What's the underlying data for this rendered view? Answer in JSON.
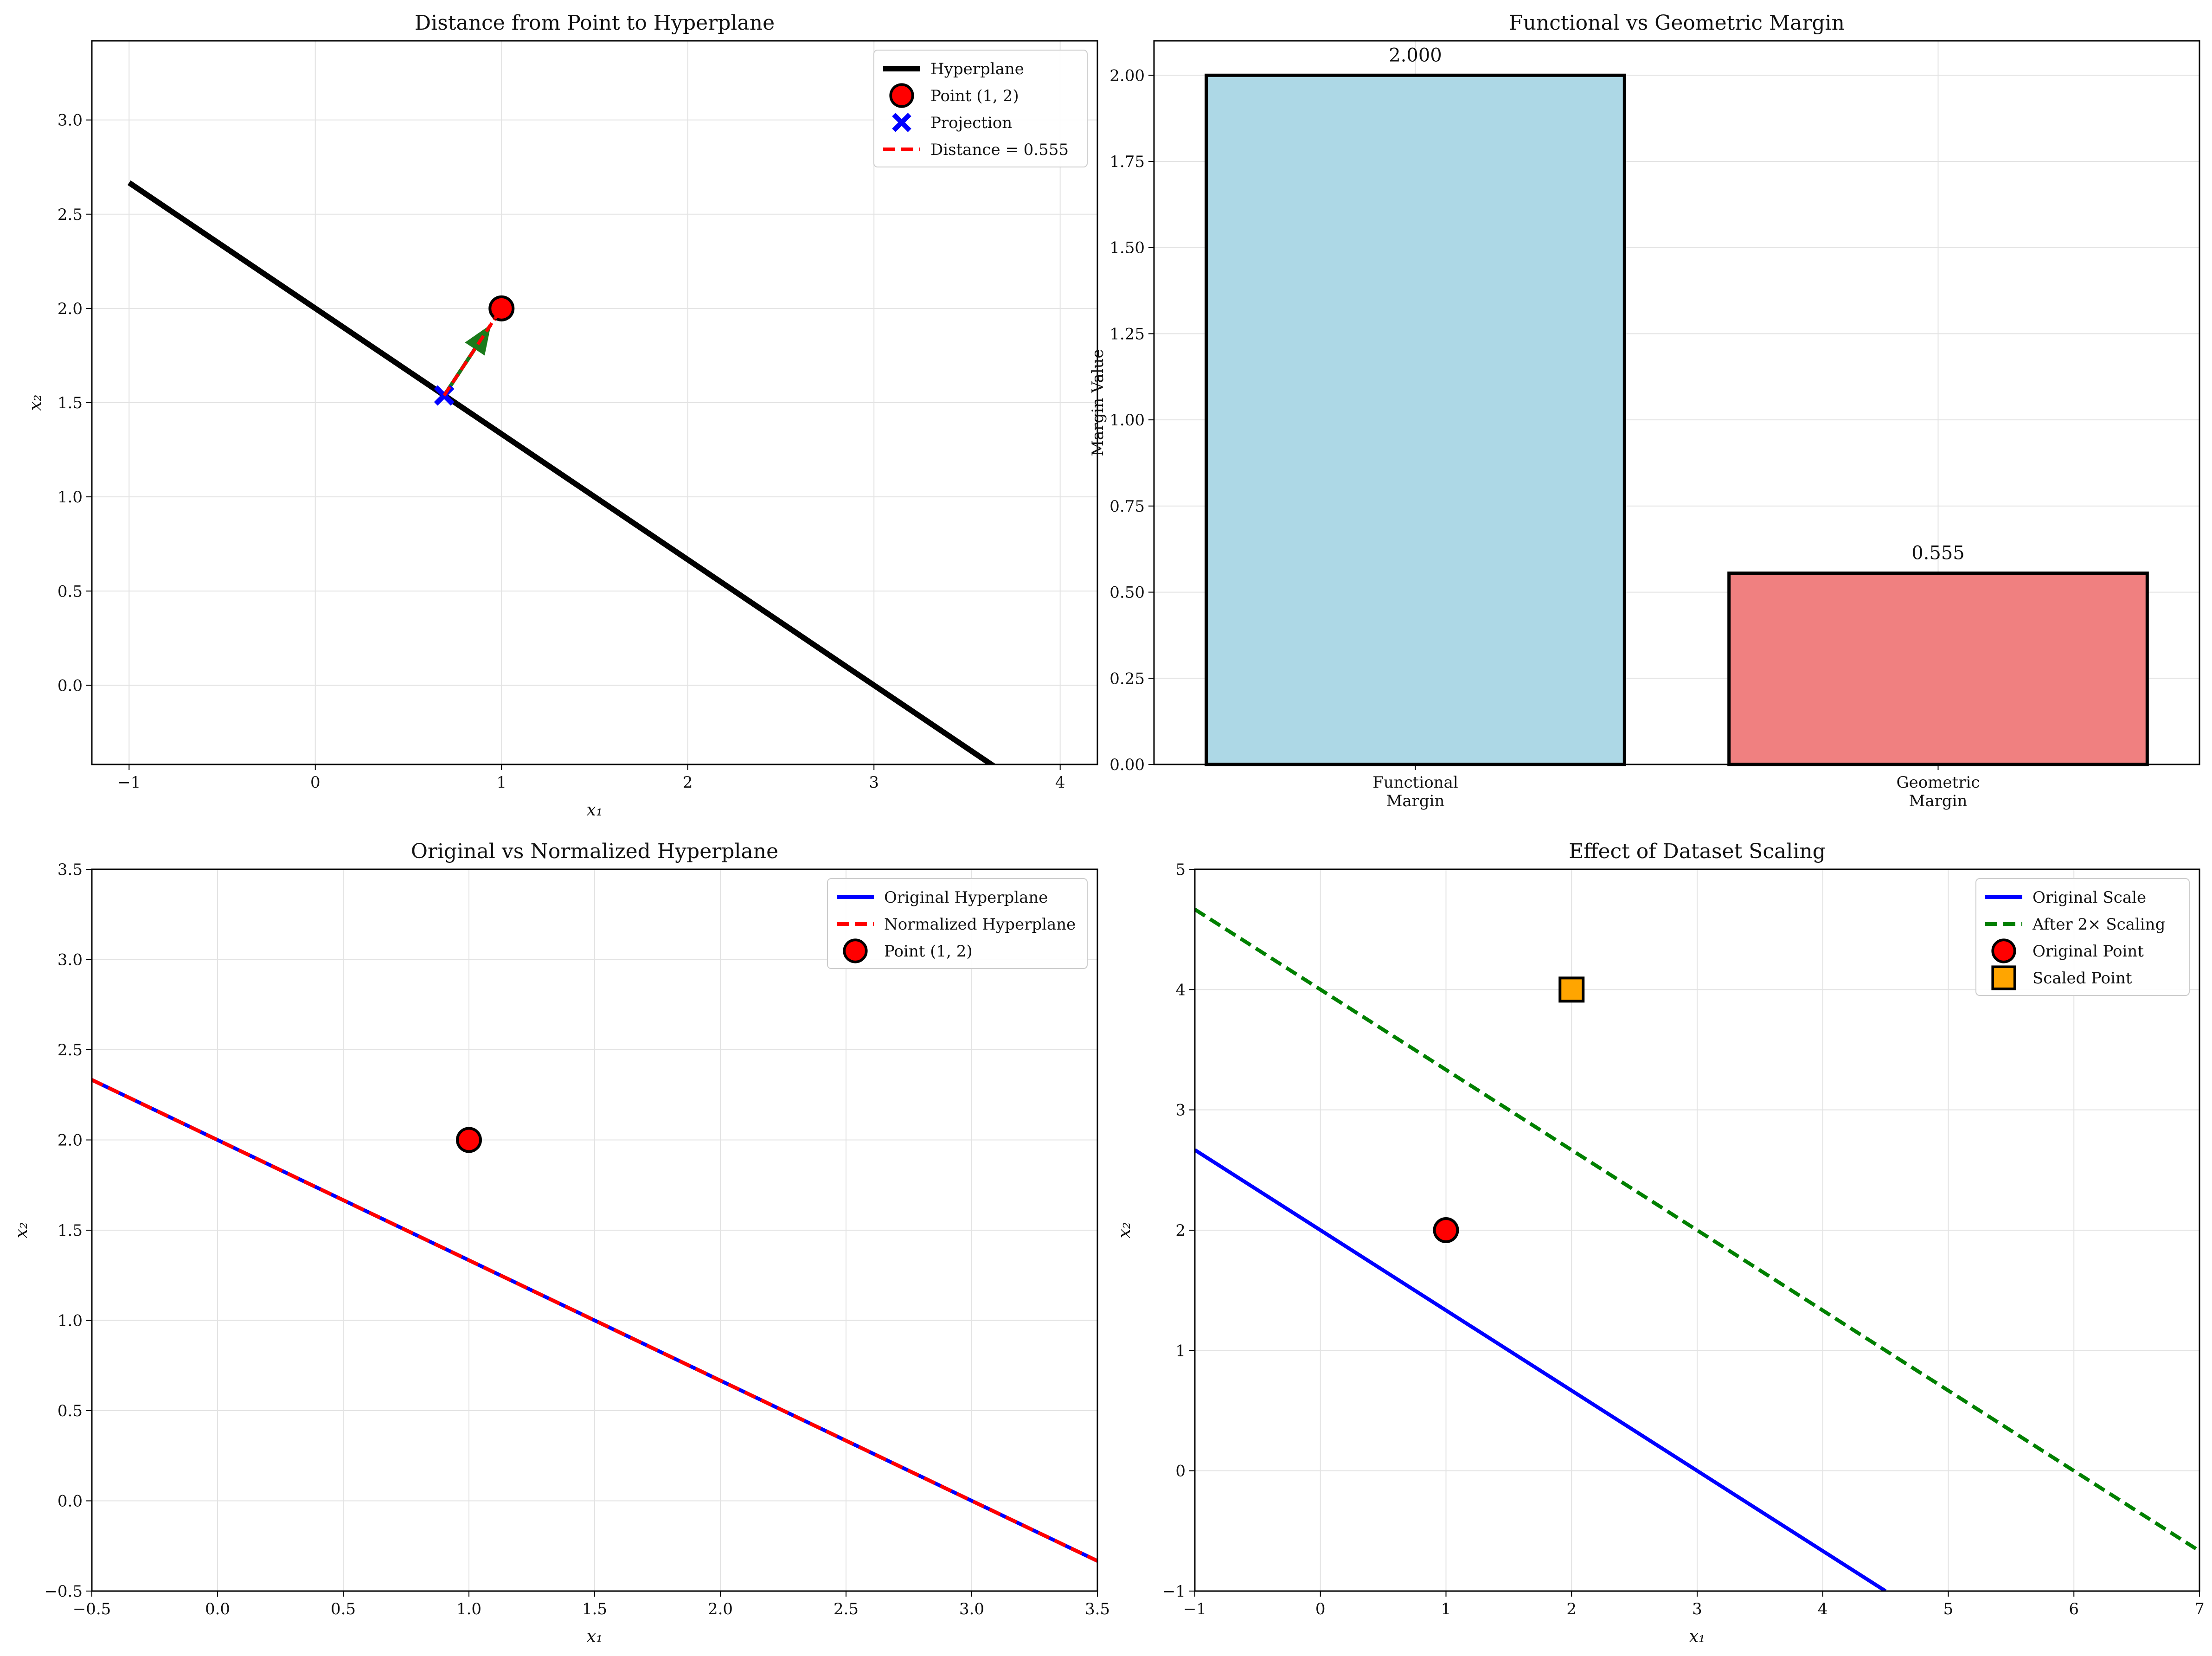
{
  "chart_data": [
    {
      "type": "line",
      "title": "Distance from Point to Hyperplane",
      "xlabel": "x₁",
      "ylabel": "x₂",
      "xlim": [
        -1.2,
        4.2
      ],
      "ylim": [
        -0.42,
        3.42
      ],
      "x_ticks": [
        -1,
        0,
        1,
        2,
        3,
        4
      ],
      "y_ticks": [
        0.0,
        0.5,
        1.0,
        1.5,
        2.0,
        2.5,
        3.0
      ],
      "grid": true,
      "legend_position": "top-right",
      "series": [
        {
          "name": "Hyperplane",
          "kind": "line",
          "color": "#000000",
          "style": "solid",
          "x": [
            -1.0,
            3.65
          ],
          "y": [
            2.667,
            -0.433
          ]
        },
        {
          "name": "Point (1, 2)",
          "kind": "marker",
          "marker": "circle",
          "color": "#ff0000",
          "x": [
            1.0
          ],
          "y": [
            2.0
          ]
        },
        {
          "name": "Projection",
          "kind": "marker",
          "marker": "x",
          "color": "#0000ff",
          "x": [
            0.692
          ],
          "y": [
            1.538
          ]
        },
        {
          "name": "Distance = 0.555",
          "kind": "line",
          "color": "#ff0000",
          "style": "dashed",
          "x": [
            0.692,
            1.0
          ],
          "y": [
            1.538,
            2.0
          ]
        }
      ],
      "arrow": {
        "color": "#1a7a1a",
        "from": [
          0.692,
          1.538
        ],
        "to": [
          0.94,
          1.91
        ]
      }
    },
    {
      "type": "bar",
      "title": "Functional vs Geometric Margin",
      "xlabel": "",
      "ylabel": "Margin Value",
      "categories": [
        [
          "Functional",
          "Margin"
        ],
        [
          "Geometric",
          "Margin"
        ]
      ],
      "values": [
        2.0,
        0.555
      ],
      "value_labels": [
        "2.000",
        "0.555"
      ],
      "colors": [
        "#add8e6",
        "#f08080"
      ],
      "ylim": [
        0,
        2.1
      ],
      "y_ticks": [
        0.0,
        0.25,
        0.5,
        0.75,
        1.0,
        1.25,
        1.5,
        1.75,
        2.0
      ],
      "grid": true
    },
    {
      "type": "line",
      "title": "Original vs Normalized Hyperplane",
      "xlabel": "x₁",
      "ylabel": "x₂",
      "xlim": [
        -0.5,
        3.5
      ],
      "ylim": [
        -0.5,
        3.5
      ],
      "x_ticks": [
        -0.5,
        0.0,
        0.5,
        1.0,
        1.5,
        2.0,
        2.5,
        3.0,
        3.5
      ],
      "y_ticks": [
        -0.5,
        0.0,
        0.5,
        1.0,
        1.5,
        2.0,
        2.5,
        3.0,
        3.5
      ],
      "grid": true,
      "legend_position": "top-right",
      "series": [
        {
          "name": "Original Hyperplane",
          "kind": "line",
          "color": "#0000ff",
          "style": "solid",
          "x": [
            -0.5,
            3.5
          ],
          "y": [
            2.333,
            -0.333
          ]
        },
        {
          "name": "Normalized Hyperplane",
          "kind": "line",
          "color": "#ff0000",
          "style": "dashed",
          "x": [
            -0.5,
            3.5
          ],
          "y": [
            2.333,
            -0.333
          ]
        },
        {
          "name": "Point (1, 2)",
          "kind": "marker",
          "marker": "circle",
          "color": "#ff0000",
          "x": [
            1.0
          ],
          "y": [
            2.0
          ]
        }
      ]
    },
    {
      "type": "line",
      "title": "Effect of Dataset Scaling",
      "xlabel": "x₁",
      "ylabel": "x₂",
      "xlim": [
        -1,
        7
      ],
      "ylim": [
        -1,
        5
      ],
      "x_ticks": [
        -1,
        0,
        1,
        2,
        3,
        4,
        5,
        6,
        7
      ],
      "y_ticks": [
        -1,
        0,
        1,
        2,
        3,
        4,
        5
      ],
      "grid": true,
      "legend_position": "top-right",
      "series": [
        {
          "name": "Original Scale",
          "kind": "line",
          "color": "#0000ff",
          "style": "solid",
          "x": [
            -1.0,
            4.5
          ],
          "y": [
            2.667,
            -1.0
          ]
        },
        {
          "name": "After 2× Scaling",
          "kind": "line",
          "color": "#008000",
          "style": "dashed",
          "x": [
            -1.0,
            7.0
          ],
          "y": [
            4.667,
            -0.667
          ]
        },
        {
          "name": "Original Point",
          "kind": "marker",
          "marker": "circle",
          "color": "#ff0000",
          "x": [
            1.0
          ],
          "y": [
            2.0
          ]
        },
        {
          "name": "Scaled Point",
          "kind": "marker",
          "marker": "square",
          "color": "#ffa500",
          "x": [
            2.0
          ],
          "y": [
            4.0
          ]
        }
      ]
    }
  ]
}
